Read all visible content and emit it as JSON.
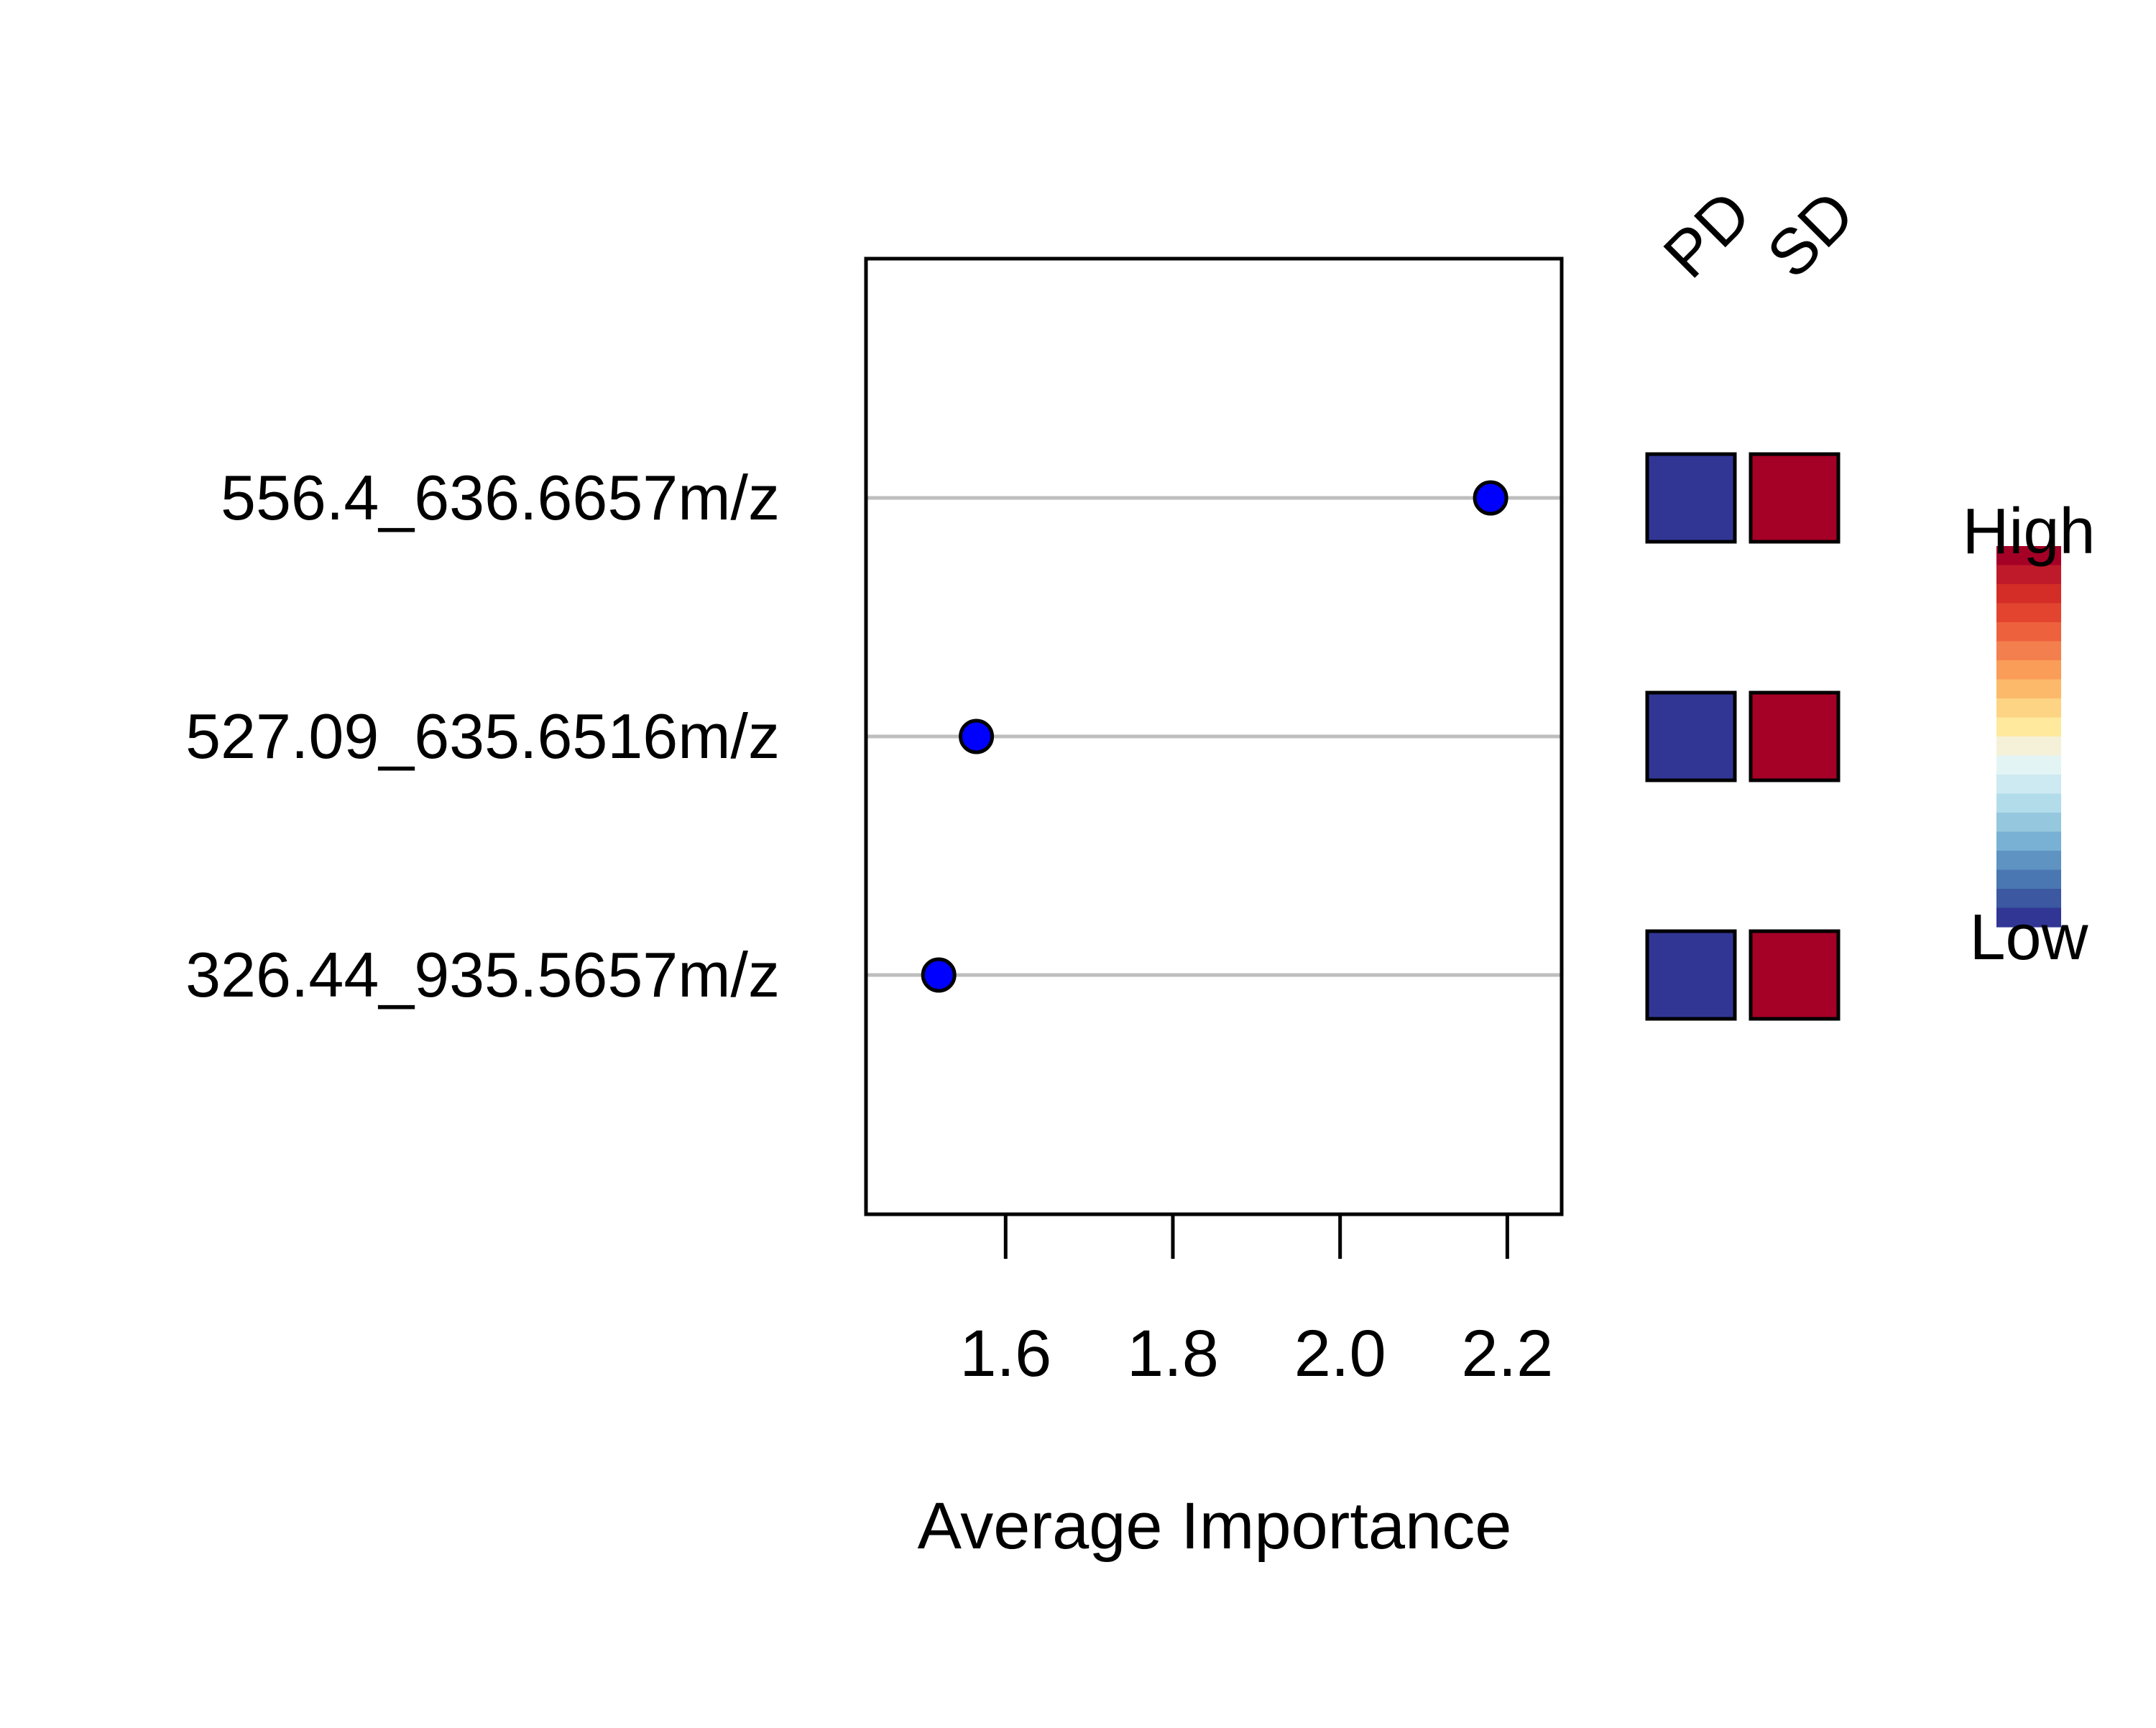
{
  "chart_data": {
    "type": "scatter",
    "title": "",
    "xlabel": "Average Importance",
    "ylabel": "",
    "xlim": [
      1.433,
      2.265
    ],
    "x_ticks": [
      "1.6",
      "1.8",
      "2.0",
      "2.2"
    ],
    "x_tick_values": [
      1.6,
      1.8,
      2.0,
      2.2
    ],
    "grid": "horizontal guide lines",
    "categories": [
      "556.4_636.6657m/z",
      "527.09_635.6516m/z",
      "326.44_935.5657m/z"
    ],
    "values": [
      2.18,
      1.565,
      1.52
    ],
    "point_color": "#0000ff",
    "heatmap": {
      "columns": [
        "PD",
        "SD"
      ],
      "cells": [
        [
          "#313695",
          "#a50026"
        ],
        [
          "#313695",
          "#a50026"
        ],
        [
          "#313695",
          "#a50026"
        ]
      ]
    },
    "colorbar": {
      "high_label": "High",
      "low_label": "Low",
      "colors": [
        "#a50026",
        "#be1a2a",
        "#d42d27",
        "#e24430",
        "#ee613d",
        "#f47f4e",
        "#f99d59",
        "#fcb96a",
        "#fdd384",
        "#fee99d",
        "#f5f1d8",
        "#e3f4f5",
        "#cde9f1",
        "#b2dcea",
        "#95c7de",
        "#79b1d4",
        "#5e93c2",
        "#4a76b1",
        "#3b58a1",
        "#313695"
      ]
    }
  }
}
